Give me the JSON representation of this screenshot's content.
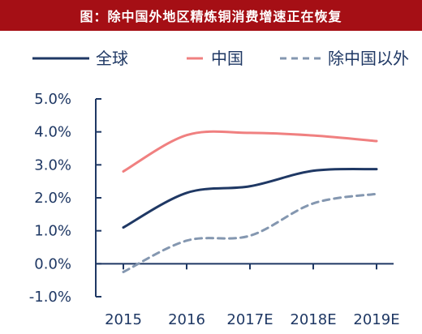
{
  "chart_data": {
    "type": "line",
    "title": "图：除中国外地区精炼铜消费增速正在恢复",
    "categories": [
      "2015",
      "2016",
      "2017E",
      "2018E",
      "2019E"
    ],
    "ylim": [
      -0.01,
      0.05
    ],
    "y_ticks": [
      "5.0%",
      "4.0%",
      "3.0%",
      "2.0%",
      "1.0%",
      "0.0%",
      "-1.0%"
    ],
    "y_tick_values": [
      0.05,
      0.04,
      0.03,
      0.02,
      0.01,
      0.0,
      -0.01
    ],
    "legend_position": "top",
    "series": [
      {
        "name": "全球",
        "values": [
          0.011,
          0.0215,
          0.0235,
          0.0282,
          0.0287
        ],
        "color": "#1f3864",
        "dash": "solid"
      },
      {
        "name": "中国",
        "values": [
          0.028,
          0.039,
          0.0397,
          0.0389,
          0.0372
        ],
        "color": "#f08080",
        "dash": "solid"
      },
      {
        "name": "除中国以外",
        "values": [
          -0.0025,
          0.007,
          0.0085,
          0.0183,
          0.0212
        ],
        "color": "#8497b0",
        "dash": "dashed"
      }
    ]
  }
}
